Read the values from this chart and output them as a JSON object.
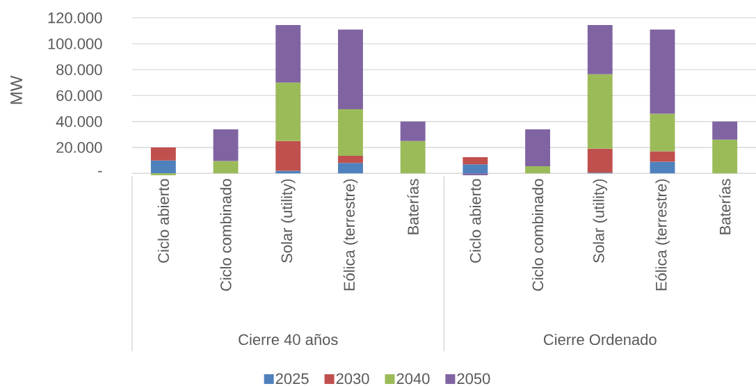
{
  "chart_data": {
    "type": "bar",
    "stacked": true,
    "ylabel": "MW",
    "categories": [
      "Ciclo abierto",
      "Ciclo combinado",
      "Solar (utility)",
      "Eólica (terrestre)",
      "Baterías",
      "Ciclo abierto",
      "Ciclo combinado",
      "Solar (utility)",
      "Eólica (terrestre)",
      "Baterías"
    ],
    "series": [
      {
        "name": "2025",
        "color": "#4f81bd",
        "values": [
          10000,
          0,
          2000,
          8000,
          0,
          7000,
          0,
          500,
          9000,
          0
        ]
      },
      {
        "name": "2030",
        "color": "#c0504d",
        "values": [
          10000,
          0,
          23000,
          5500,
          0,
          5500,
          0,
          18500,
          8000,
          0
        ]
      },
      {
        "name": "2040",
        "color": "#9bbb59",
        "values": [
          -1500,
          9500,
          45000,
          36000,
          25000,
          0,
          5500,
          57500,
          29000,
          26000
        ]
      },
      {
        "name": "2050",
        "color": "#8064a2",
        "values": [
          0,
          24500,
          44500,
          61500,
          15000,
          -1500,
          28500,
          38000,
          65000,
          14000
        ]
      }
    ],
    "ylim": [
      -2000,
      120000
    ],
    "yticks": [
      {
        "value": 0,
        "label": "-"
      },
      {
        "value": 20000,
        "label": "20.000"
      },
      {
        "value": 40000,
        "label": "40.000"
      },
      {
        "value": 60000,
        "label": "60.000"
      },
      {
        "value": 80000,
        "label": "80.000"
      },
      {
        "value": 100000,
        "label": "100.000"
      },
      {
        "value": 120000,
        "label": "120.000"
      }
    ],
    "grid": "y",
    "legend": "bottom",
    "annotations": [
      "Cierre 40 años",
      "Cierre Ordenado"
    ]
  }
}
